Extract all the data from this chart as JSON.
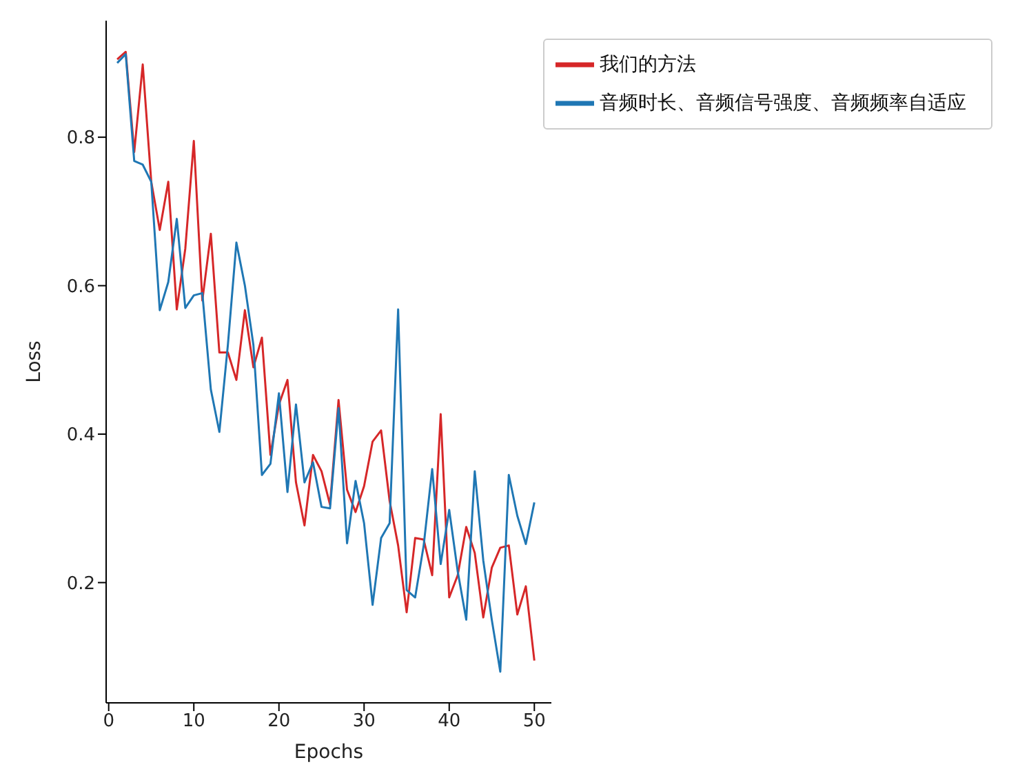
{
  "chart_data": {
    "type": "line",
    "xlabel": "Epochs",
    "ylabel": "Loss",
    "x": [
      1,
      2,
      3,
      4,
      5,
      6,
      7,
      8,
      9,
      10,
      11,
      12,
      13,
      14,
      15,
      16,
      17,
      18,
      19,
      20,
      21,
      22,
      23,
      24,
      25,
      26,
      27,
      28,
      29,
      30,
      31,
      32,
      33,
      34,
      35,
      36,
      37,
      38,
      39,
      40,
      41,
      42,
      43,
      44,
      45,
      46,
      47,
      48,
      49,
      50
    ],
    "series": [
      {
        "name": "我们的方法",
        "color": "#d62728",
        "values": [
          0.905,
          0.915,
          0.78,
          0.898,
          0.74,
          0.675,
          0.74,
          0.568,
          0.65,
          0.795,
          0.58,
          0.67,
          0.51,
          0.51,
          0.473,
          0.567,
          0.49,
          0.53,
          0.372,
          0.44,
          0.473,
          0.335,
          0.277,
          0.372,
          0.35,
          0.305,
          0.446,
          0.325,
          0.295,
          0.33,
          0.39,
          0.405,
          0.31,
          0.25,
          0.16,
          0.26,
          0.258,
          0.21,
          0.427,
          0.18,
          0.21,
          0.275,
          0.24,
          0.153,
          0.22,
          0.247,
          0.25,
          0.157,
          0.195,
          0.095
        ]
      },
      {
        "name": "音频时长、音频信号强度、音频频率自适应",
        "color": "#1f77b4",
        "values": [
          0.9,
          0.912,
          0.768,
          0.763,
          0.74,
          0.567,
          0.605,
          0.69,
          0.57,
          0.587,
          0.59,
          0.46,
          0.403,
          0.52,
          0.658,
          0.6,
          0.52,
          0.345,
          0.36,
          0.455,
          0.322,
          0.44,
          0.335,
          0.362,
          0.302,
          0.3,
          0.435,
          0.253,
          0.337,
          0.28,
          0.17,
          0.26,
          0.28,
          0.568,
          0.19,
          0.18,
          0.25,
          0.353,
          0.225,
          0.298,
          0.215,
          0.15,
          0.35,
          0.23,
          0.15,
          0.08,
          0.345,
          0.29,
          0.252,
          0.308
        ]
      }
    ],
    "xlim": [
      -0.3,
      52
    ],
    "xticks": [
      0,
      10,
      20,
      30,
      40,
      50
    ],
    "ylim": [
      0.038,
      0.957
    ],
    "yticks": [
      0.2,
      0.4,
      0.6,
      0.8
    ],
    "grid": false,
    "legend": "top right",
    "marker": "none",
    "line_style": "solid"
  }
}
